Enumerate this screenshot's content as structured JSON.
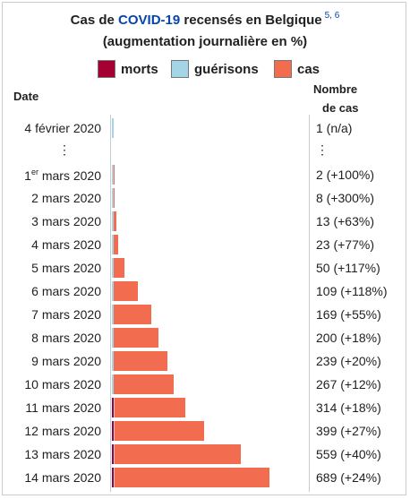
{
  "title": {
    "prefix": "Cas de ",
    "link": "COVID-19",
    "suffix": " recensés en Belgique",
    "refs": "5, 6",
    "subtitle": "(augmentation journalière en %)"
  },
  "legend": [
    {
      "label": "morts",
      "color": "#a50034"
    },
    {
      "label": "guérisons",
      "color": "#a3d5e6"
    },
    {
      "label": "cas",
      "color": "#f26c4f"
    }
  ],
  "headers": {
    "date": "Date",
    "count_line1": "Nombre",
    "count_line2": "de cas"
  },
  "colors": {
    "deaths": "#a50034",
    "recovered": "#a3d5e6",
    "cases": "#f26c4f",
    "border": "#c8ccd1",
    "link": "#0645ad"
  },
  "rows": [
    {
      "date": "4 février 2020",
      "count": "1 (n/a)"
    },
    {
      "ellipsis": "⋮"
    },
    {
      "date_main": "1",
      "date_sup": "er",
      "date_rest": " mars 2020",
      "count": "2 (+100%)"
    },
    {
      "date": "2 mars 2020",
      "count": "8 (+300%)"
    },
    {
      "date": "3 mars 2020",
      "count": "13 (+63%)"
    },
    {
      "date": "4 mars 2020",
      "count": "23 (+77%)"
    },
    {
      "date": "5 mars 2020",
      "count": "50 (+117%)"
    },
    {
      "date": "6 mars 2020",
      "count": "109 (+118%)"
    },
    {
      "date": "7 mars 2020",
      "count": "169 (+55%)"
    },
    {
      "date": "8 mars 2020",
      "count": "200 (+18%)"
    },
    {
      "date": "9 mars 2020",
      "count": "239 (+20%)"
    },
    {
      "date": "10 mars 2020",
      "count": "267 (+12%)"
    },
    {
      "date": "11 mars 2020",
      "count": "314 (+18%)"
    },
    {
      "date": "12 mars 2020",
      "count": "399 (+27%)"
    },
    {
      "date": "13 mars 2020",
      "count": "559 (+40%)"
    },
    {
      "date": "14 mars 2020",
      "count": "689 (+24%)"
    }
  ],
  "chart_data": {
    "type": "bar",
    "orientation": "horizontal",
    "stacked": true,
    "categories": [
      "4 février 2020",
      "1er mars 2020",
      "2 mars 2020",
      "3 mars 2020",
      "4 mars 2020",
      "5 mars 2020",
      "6 mars 2020",
      "7 mars 2020",
      "8 mars 2020",
      "9 mars 2020",
      "10 mars 2020",
      "11 mars 2020",
      "12 mars 2020",
      "13 mars 2020",
      "14 mars 2020"
    ],
    "series": [
      {
        "name": "morts",
        "color": "#a50034",
        "values": [
          0,
          0,
          0,
          0,
          0,
          0,
          0,
          0,
          0,
          0,
          0,
          1,
          1,
          1,
          1
        ]
      },
      {
        "name": "guérisons",
        "color": "#a3d5e6",
        "values": [
          1,
          1,
          1,
          1,
          1,
          1,
          1,
          1,
          1,
          1,
          1,
          1,
          1,
          1,
          1
        ]
      },
      {
        "name": "cas",
        "color": "#f26c4f",
        "values": [
          0,
          1,
          7,
          12,
          22,
          49,
          108,
          168,
          199,
          238,
          266,
          312,
          397,
          557,
          687
        ]
      }
    ],
    "totals": [
      1,
      2,
      8,
      13,
      23,
      50,
      109,
      169,
      200,
      239,
      267,
      314,
      399,
      559,
      689
    ],
    "xlim": [
      0,
      689
    ],
    "legend_position": "top"
  }
}
